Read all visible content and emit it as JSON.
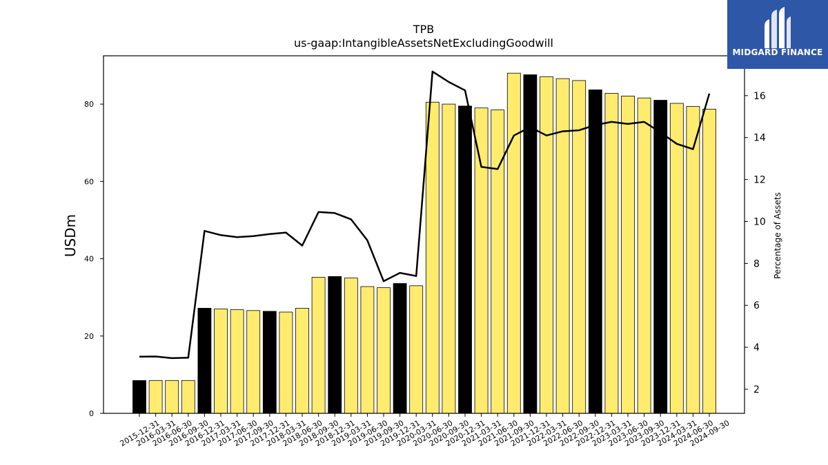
{
  "chart_data": {
    "type": "bar",
    "title": "TPB",
    "subtitle": "us-gaap:IntangibleAssetsNetExcludingGoodwill",
    "ylabel": "USDm",
    "y2label": "Percentage of Assets",
    "ylim": [
      0,
      92.5
    ],
    "y2lim": [
      0.85,
      17.9
    ],
    "yticks": [
      0,
      20,
      40,
      60,
      80
    ],
    "y2ticks": [
      2,
      4,
      6,
      8,
      10,
      12,
      14,
      16
    ],
    "categories": [
      "2015-12-31",
      "2016-03-31",
      "2016-06-30",
      "2016-09-30",
      "2016-12-31",
      "2017-03-31",
      "2017-06-30",
      "2017-09-30",
      "2017-12-31",
      "2018-03-31",
      "2018-06-30",
      "2018-09-30",
      "2018-12-31",
      "2019-03-31",
      "2019-06-30",
      "2019-09-30",
      "2019-12-31",
      "2020-03-31",
      "2020-06-30",
      "2020-09-30",
      "2020-12-31",
      "2021-03-31",
      "2021-06-30",
      "2021-09-30",
      "2021-12-31",
      "2022-03-31",
      "2022-06-30",
      "2022-09-30",
      "2022-12-31",
      "2023-03-31",
      "2023-06-30",
      "2023-09-30",
      "2023-12-31",
      "2024-03-31",
      "2024-06-30",
      "2024-09-30"
    ],
    "series": [
      {
        "type": "bar",
        "values": [
          8.5,
          8.5,
          8.5,
          8.5,
          27.2,
          27.0,
          26.8,
          26.6,
          26.4,
          26.2,
          27.2,
          35.2,
          35.4,
          35.0,
          32.8,
          32.5,
          33.6,
          33.0,
          80.5,
          80.0,
          79.5,
          79.0,
          78.5,
          88.0,
          87.6,
          87.1,
          86.6,
          86.1,
          83.7,
          82.8,
          82.1,
          81.6,
          81.0,
          80.2,
          79.4,
          78.7
        ],
        "colors": {
          "fiscal_q4": "#000000",
          "other": "#ffec6e"
        }
      },
      {
        "type": "line",
        "axis": "right",
        "values": [
          3.55,
          3.56,
          3.48,
          3.5,
          9.55,
          9.35,
          9.25,
          9.3,
          9.4,
          9.47,
          8.85,
          10.45,
          10.4,
          10.1,
          9.1,
          7.15,
          7.55,
          7.4,
          17.15,
          16.65,
          16.25,
          12.6,
          12.5,
          14.1,
          14.5,
          14.1,
          14.3,
          14.35,
          14.6,
          14.75,
          14.65,
          14.75,
          14.25,
          13.7,
          13.45,
          16.1
        ],
        "color": "#000000"
      }
    ],
    "grid": false
  },
  "logo": {
    "text": "MIDGARD FINANCE",
    "icon": "midgard-logo-icon",
    "background": "#2f57a8"
  }
}
